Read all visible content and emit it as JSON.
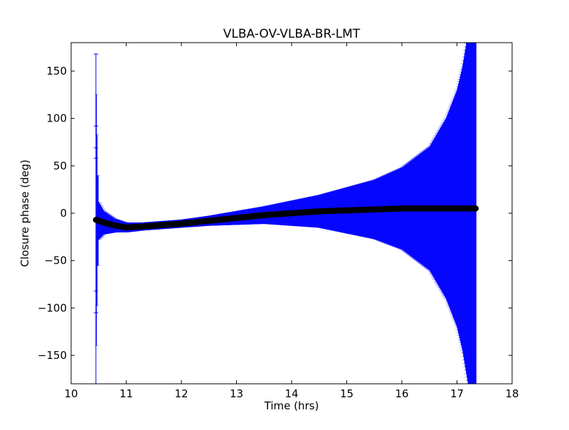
{
  "chart_data": {
    "type": "scatter",
    "title": "VLBA-OV-VLBA-BR-LMT",
    "xlabel": "Time (hrs)",
    "ylabel": "Closure phase (deg)",
    "xlim": [
      10,
      18
    ],
    "ylim": [
      -180,
      180
    ],
    "x_ticks": [
      10,
      11,
      12,
      13,
      14,
      15,
      16,
      17,
      18
    ],
    "y_ticks": [
      -150,
      -100,
      -50,
      0,
      50,
      100,
      150
    ],
    "x_tick_labels": [
      "10",
      "11",
      "12",
      "13",
      "14",
      "15",
      "16",
      "17",
      "18"
    ],
    "y_tick_labels": [
      "−150",
      "−100",
      "−50",
      "0",
      "50",
      "100",
      "150"
    ],
    "grid": false,
    "series": [
      {
        "marker_color": "#000000",
        "errorbar_color": "#0000ff",
        "x_start": 10.45,
        "x_end": 17.35,
        "profile": [
          {
            "x": 10.45,
            "y": -7,
            "err": 175
          },
          {
            "x": 10.5,
            "y": -8,
            "err": 20
          },
          {
            "x": 10.6,
            "y": -10,
            "err": 12
          },
          {
            "x": 10.8,
            "y": -13,
            "err": 7
          },
          {
            "x": 11.0,
            "y": -15,
            "err": 5
          },
          {
            "x": 11.3,
            "y": -14,
            "err": 4
          },
          {
            "x": 12.0,
            "y": -11,
            "err": 4
          },
          {
            "x": 12.5,
            "y": -8,
            "err": 5
          },
          {
            "x": 13.0,
            "y": -5,
            "err": 7
          },
          {
            "x": 13.5,
            "y": -2,
            "err": 9
          },
          {
            "x": 14.0,
            "y": 0,
            "err": 13
          },
          {
            "x": 14.5,
            "y": 2,
            "err": 17
          },
          {
            "x": 15.0,
            "y": 3,
            "err": 24
          },
          {
            "x": 15.5,
            "y": 4,
            "err": 31
          },
          {
            "x": 16.0,
            "y": 5,
            "err": 43
          },
          {
            "x": 16.5,
            "y": 5,
            "err": 65
          },
          {
            "x": 16.8,
            "y": 5,
            "err": 95
          },
          {
            "x": 17.0,
            "y": 5,
            "err": 125
          },
          {
            "x": 17.1,
            "y": 5,
            "err": 150
          },
          {
            "x": 17.2,
            "y": 5,
            "err": 185
          },
          {
            "x": 17.35,
            "y": 5,
            "err": 220
          }
        ]
      }
    ]
  }
}
